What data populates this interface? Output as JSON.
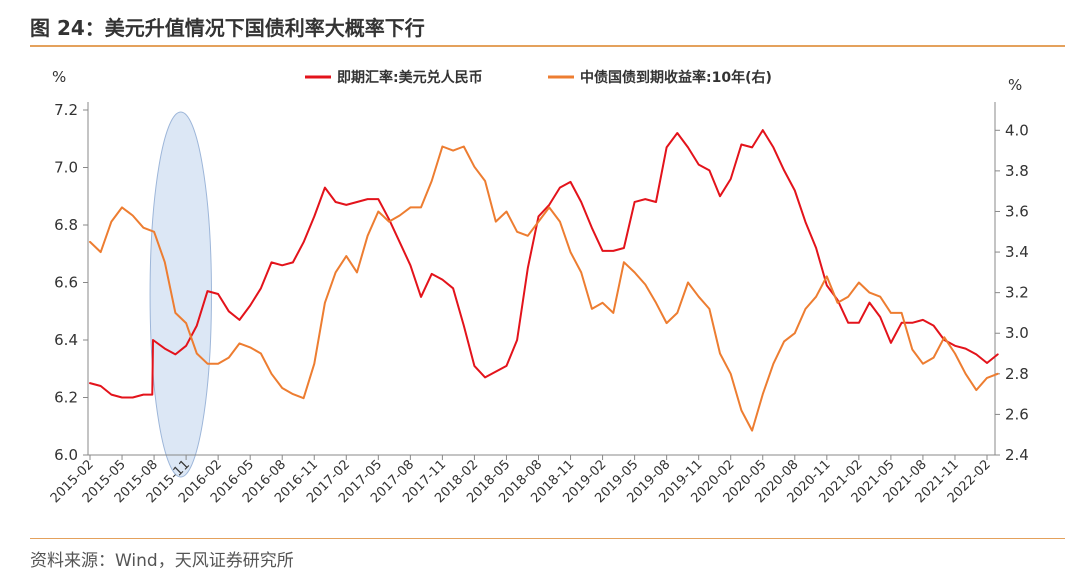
{
  "title": "图 24：美元升值情况下国债利率大概率下行",
  "source": "资料来源：Wind，天风证券研究所",
  "chart_data": {
    "type": "line",
    "left_unit": "%",
    "right_unit": "%",
    "left_ylim": [
      6.0,
      7.2
    ],
    "left_ticks": [
      "6.0",
      "6.2",
      "6.4",
      "6.6",
      "6.8",
      "7.0",
      "7.2"
    ],
    "right_ylim": [
      2.4,
      4.1
    ],
    "right_ticks": [
      "2.4",
      "2.6",
      "2.8",
      "3.0",
      "3.2",
      "3.4",
      "3.6",
      "3.8",
      "4.0"
    ],
    "x_ticks": [
      "2015-02",
      "2015-05",
      "2015-08",
      "2015-11",
      "2016-02",
      "2016-05",
      "2016-08",
      "2016-11",
      "2017-02",
      "2017-05",
      "2017-08",
      "2017-11",
      "2018-02",
      "2018-05",
      "2018-08",
      "2018-11",
      "2019-02",
      "2019-05",
      "2019-08",
      "2019-11",
      "2020-02",
      "2020-05",
      "2020-08",
      "2020-11",
      "2021-02",
      "2021-05",
      "2021-08",
      "2021-11",
      "2022-02"
    ],
    "grid": false,
    "legend_position": "top-center",
    "highlight": {
      "from": "2015-08",
      "to": "2016-01",
      "color": "#C9DAF0"
    },
    "series": [
      {
        "name": "即期汇率:美元兑人民币",
        "axis": "left",
        "color": "#E3131B",
        "values": [
          [
            "2015-02",
            6.25
          ],
          [
            "2015-03",
            6.24
          ],
          [
            "2015-04",
            6.21
          ],
          [
            "2015-05",
            6.2
          ],
          [
            "2015-06",
            6.2
          ],
          [
            "2015-07",
            6.21
          ],
          [
            "2015-08-10",
            6.21
          ],
          [
            "2015-08-12",
            6.4
          ],
          [
            "2015-09",
            6.37
          ],
          [
            "2015-10",
            6.35
          ],
          [
            "2015-11",
            6.38
          ],
          [
            "2015-12",
            6.45
          ],
          [
            "2016-01",
            6.57
          ],
          [
            "2016-02",
            6.56
          ],
          [
            "2016-03",
            6.5
          ],
          [
            "2016-04",
            6.47
          ],
          [
            "2016-05",
            6.52
          ],
          [
            "2016-06",
            6.58
          ],
          [
            "2016-07",
            6.67
          ],
          [
            "2016-08",
            6.66
          ],
          [
            "2016-09",
            6.67
          ],
          [
            "2016-10",
            6.74
          ],
          [
            "2016-11",
            6.83
          ],
          [
            "2016-12",
            6.93
          ],
          [
            "2017-01",
            6.88
          ],
          [
            "2017-02",
            6.87
          ],
          [
            "2017-03",
            6.88
          ],
          [
            "2017-04",
            6.89
          ],
          [
            "2017-05",
            6.89
          ],
          [
            "2017-06",
            6.82
          ],
          [
            "2017-07",
            6.74
          ],
          [
            "2017-08",
            6.66
          ],
          [
            "2017-09",
            6.55
          ],
          [
            "2017-10",
            6.63
          ],
          [
            "2017-11",
            6.61
          ],
          [
            "2017-12",
            6.58
          ],
          [
            "2018-01",
            6.45
          ],
          [
            "2018-02",
            6.31
          ],
          [
            "2018-03",
            6.27
          ],
          [
            "2018-04",
            6.29
          ],
          [
            "2018-05",
            6.31
          ],
          [
            "2018-06",
            6.4
          ],
          [
            "2018-07",
            6.65
          ],
          [
            "2018-08",
            6.83
          ],
          [
            "2018-09",
            6.87
          ],
          [
            "2018-10",
            6.93
          ],
          [
            "2018-11",
            6.95
          ],
          [
            "2018-12",
            6.88
          ],
          [
            "2019-01",
            6.79
          ],
          [
            "2019-02",
            6.71
          ],
          [
            "2019-03",
            6.71
          ],
          [
            "2019-04",
            6.72
          ],
          [
            "2019-05",
            6.88
          ],
          [
            "2019-06",
            6.89
          ],
          [
            "2019-07",
            6.88
          ],
          [
            "2019-08",
            7.07
          ],
          [
            "2019-09",
            7.12
          ],
          [
            "2019-10",
            7.07
          ],
          [
            "2019-11",
            7.01
          ],
          [
            "2019-12",
            6.99
          ],
          [
            "2020-01",
            6.9
          ],
          [
            "2020-02",
            6.96
          ],
          [
            "2020-03",
            7.08
          ],
          [
            "2020-04",
            7.07
          ],
          [
            "2020-05",
            7.13
          ],
          [
            "2020-06",
            7.07
          ],
          [
            "2020-07",
            6.99
          ],
          [
            "2020-08",
            6.92
          ],
          [
            "2020-09",
            6.81
          ],
          [
            "2020-10",
            6.72
          ],
          [
            "2020-11",
            6.59
          ],
          [
            "2020-12",
            6.54
          ],
          [
            "2021-01",
            6.46
          ],
          [
            "2021-02",
            6.46
          ],
          [
            "2021-03",
            6.53
          ],
          [
            "2021-04",
            6.48
          ],
          [
            "2021-05",
            6.39
          ],
          [
            "2021-06",
            6.46
          ],
          [
            "2021-07",
            6.46
          ],
          [
            "2021-08",
            6.47
          ],
          [
            "2021-09",
            6.45
          ],
          [
            "2021-10",
            6.4
          ],
          [
            "2021-11",
            6.38
          ],
          [
            "2021-12",
            6.37
          ],
          [
            "2022-01",
            6.35
          ],
          [
            "2022-02",
            6.32
          ],
          [
            "2022-03",
            6.35
          ]
        ]
      },
      {
        "name": "中债国债到期收益率:10年(右)",
        "axis": "right",
        "color": "#ED7D31",
        "values": [
          [
            "2015-02",
            3.45
          ],
          [
            "2015-03",
            3.4
          ],
          [
            "2015-04",
            3.55
          ],
          [
            "2015-05",
            3.62
          ],
          [
            "2015-06",
            3.58
          ],
          [
            "2015-07",
            3.52
          ],
          [
            "2015-08",
            3.5
          ],
          [
            "2015-09",
            3.35
          ],
          [
            "2015-10",
            3.1
          ],
          [
            "2015-11",
            3.05
          ],
          [
            "2015-12",
            2.9
          ],
          [
            "2016-01",
            2.85
          ],
          [
            "2016-02",
            2.85
          ],
          [
            "2016-03",
            2.88
          ],
          [
            "2016-04",
            2.95
          ],
          [
            "2016-05",
            2.93
          ],
          [
            "2016-06",
            2.9
          ],
          [
            "2016-07",
            2.8
          ],
          [
            "2016-08",
            2.73
          ],
          [
            "2016-09",
            2.7
          ],
          [
            "2016-10",
            2.68
          ],
          [
            "2016-11",
            2.85
          ],
          [
            "2016-12",
            3.15
          ],
          [
            "2017-01",
            3.3
          ],
          [
            "2017-02",
            3.38
          ],
          [
            "2017-03",
            3.3
          ],
          [
            "2017-04",
            3.48
          ],
          [
            "2017-05",
            3.6
          ],
          [
            "2017-06",
            3.55
          ],
          [
            "2017-07",
            3.58
          ],
          [
            "2017-08",
            3.62
          ],
          [
            "2017-09",
            3.62
          ],
          [
            "2017-10",
            3.75
          ],
          [
            "2017-11",
            3.92
          ],
          [
            "2017-12",
            3.9
          ],
          [
            "2018-01",
            3.92
          ],
          [
            "2018-02",
            3.82
          ],
          [
            "2018-03",
            3.75
          ],
          [
            "2018-04",
            3.55
          ],
          [
            "2018-05",
            3.6
          ],
          [
            "2018-06",
            3.5
          ],
          [
            "2018-07",
            3.48
          ],
          [
            "2018-08",
            3.55
          ],
          [
            "2018-09",
            3.62
          ],
          [
            "2018-10",
            3.55
          ],
          [
            "2018-11",
            3.4
          ],
          [
            "2018-12",
            3.3
          ],
          [
            "2019-01",
            3.12
          ],
          [
            "2019-02",
            3.15
          ],
          [
            "2019-03",
            3.1
          ],
          [
            "2019-04",
            3.35
          ],
          [
            "2019-05",
            3.3
          ],
          [
            "2019-06",
            3.24
          ],
          [
            "2019-07",
            3.15
          ],
          [
            "2019-08",
            3.05
          ],
          [
            "2019-09",
            3.1
          ],
          [
            "2019-10",
            3.25
          ],
          [
            "2019-11",
            3.18
          ],
          [
            "2019-12",
            3.12
          ],
          [
            "2020-01",
            2.9
          ],
          [
            "2020-02",
            2.8
          ],
          [
            "2020-03",
            2.62
          ],
          [
            "2020-04",
            2.52
          ],
          [
            "2020-05",
            2.7
          ],
          [
            "2020-06",
            2.85
          ],
          [
            "2020-07",
            2.96
          ],
          [
            "2020-08",
            3.0
          ],
          [
            "2020-09",
            3.12
          ],
          [
            "2020-10",
            3.18
          ],
          [
            "2020-11",
            3.28
          ],
          [
            "2020-12",
            3.15
          ],
          [
            "2021-01",
            3.18
          ],
          [
            "2021-02",
            3.25
          ],
          [
            "2021-03",
            3.2
          ],
          [
            "2021-04",
            3.18
          ],
          [
            "2021-05",
            3.1
          ],
          [
            "2021-06",
            3.1
          ],
          [
            "2021-07",
            2.92
          ],
          [
            "2021-08",
            2.85
          ],
          [
            "2021-09",
            2.88
          ],
          [
            "2021-10",
            2.98
          ],
          [
            "2021-11",
            2.9
          ],
          [
            "2021-12",
            2.8
          ],
          [
            "2022-01",
            2.72
          ],
          [
            "2022-02",
            2.78
          ],
          [
            "2022-03",
            2.8
          ]
        ]
      }
    ]
  }
}
